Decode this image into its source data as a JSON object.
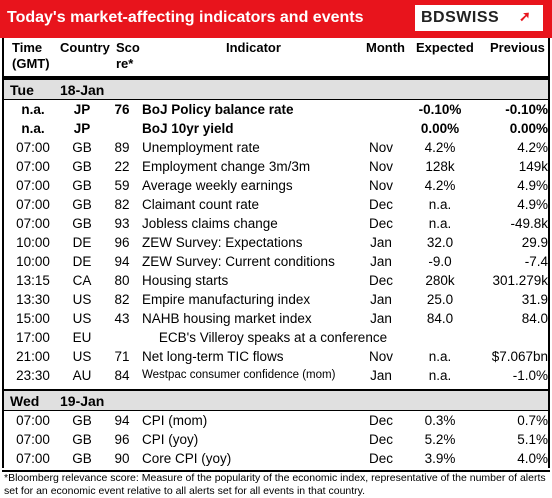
{
  "header": {
    "title": "Today's market-affecting indicators and events",
    "logo": "BDSWISS",
    "brand_color": "#e8141c"
  },
  "columns": {
    "time": "Time\n(GMT)",
    "country": "Country",
    "score": "Sco\nre*",
    "indicator": "Indicator",
    "month": "Month",
    "expected": "Expected",
    "previous": "Previous"
  },
  "days": [
    {
      "day": "Tue",
      "date": "18-Jan",
      "rows": [
        {
          "time": "n.a.",
          "country": "JP",
          "score": "76",
          "indicator": "BoJ  Policy balance rate",
          "month": "",
          "expected": "-0.10%",
          "previous": "-0.10%",
          "bold": true
        },
        {
          "time": "n.a.",
          "country": "JP",
          "score": "",
          "indicator": "BoJ 10yr yield",
          "month": "",
          "expected": "0.00%",
          "previous": "0.00%",
          "bold": true
        },
        {
          "time": "07:00",
          "country": "GB",
          "score": "89",
          "indicator": "Unemployment rate",
          "month": "Nov",
          "expected": "4.2%",
          "previous": "4.2%"
        },
        {
          "time": "07:00",
          "country": "GB",
          "score": "22",
          "indicator": "Employment change 3m/3m",
          "month": "Nov",
          "expected": "128k",
          "previous": "149k"
        },
        {
          "time": "07:00",
          "country": "GB",
          "score": "59",
          "indicator": "Average weekly earnings",
          "month": "Nov",
          "expected": "4.2%",
          "previous": "4.9%"
        },
        {
          "time": "07:00",
          "country": "GB",
          "score": "82",
          "indicator": "Claimant count rate",
          "month": "Dec",
          "expected": "n.a.",
          "previous": "4.9%"
        },
        {
          "time": "07:00",
          "country": "GB",
          "score": "93",
          "indicator": "Jobless claims change",
          "month": "Dec",
          "expected": "n.a.",
          "previous": "-49.8k"
        },
        {
          "time": "10:00",
          "country": "DE",
          "score": "96",
          "indicator": "ZEW Survey: Expectations",
          "month": "Jan",
          "expected": "32.0",
          "previous": "29.9"
        },
        {
          "time": "10:00",
          "country": "DE",
          "score": "94",
          "indicator": "ZEW Survey: Current conditions",
          "month": "Jan",
          "expected": "-9.0",
          "previous": "-7.4"
        },
        {
          "time": "13:15",
          "country": "CA",
          "score": "80",
          "indicator": "Housing starts",
          "month": "Dec",
          "expected": "280k",
          "previous": "301.279k"
        },
        {
          "time": "13:30",
          "country": "US",
          "score": "82",
          "indicator": "Empire manufacturing index",
          "month": "Jan",
          "expected": "25.0",
          "previous": "31.9"
        },
        {
          "time": "15:00",
          "country": "US",
          "score": "43",
          "indicator": "NAHB housing market index",
          "month": "Jan",
          "expected": "84.0",
          "previous": "84.0"
        },
        {
          "time": "17:00",
          "country": "EU",
          "score": "",
          "indicator": "ECB's Villeroy speaks at a conference",
          "month": "",
          "expected": "",
          "previous": "",
          "event": true
        },
        {
          "time": "21:00",
          "country": "US",
          "score": "71",
          "indicator": "Net long-term TIC flows",
          "month": "Nov",
          "expected": "n.a.",
          "previous": "$7.067bn"
        },
        {
          "time": "23:30",
          "country": "AU",
          "score": "84",
          "indicator": "Westpac consumer confidence (mom)",
          "month": "Jan",
          "expected": "n.a.",
          "previous": "-1.0%",
          "small": true
        }
      ]
    },
    {
      "day": "Wed",
      "date": "19-Jan",
      "rows": [
        {
          "time": "07:00",
          "country": "GB",
          "score": "94",
          "indicator": "CPI (mom)",
          "month": "Dec",
          "expected": "0.3%",
          "previous": "0.7%"
        },
        {
          "time": "07:00",
          "country": "GB",
          "score": "96",
          "indicator": "CPI (yoy)",
          "month": "Dec",
          "expected": "5.2%",
          "previous": "5.1%"
        },
        {
          "time": "07:00",
          "country": "GB",
          "score": "90",
          "indicator": "Core CPI (yoy)",
          "month": "Dec",
          "expected": "3.9%",
          "previous": "4.0%"
        }
      ]
    }
  ],
  "footnote": "*Bloomberg relevance score: Measure of the popularity of the economic index, representative of the number of alerts set for an economic event relative to all alerts set for all events in that country."
}
